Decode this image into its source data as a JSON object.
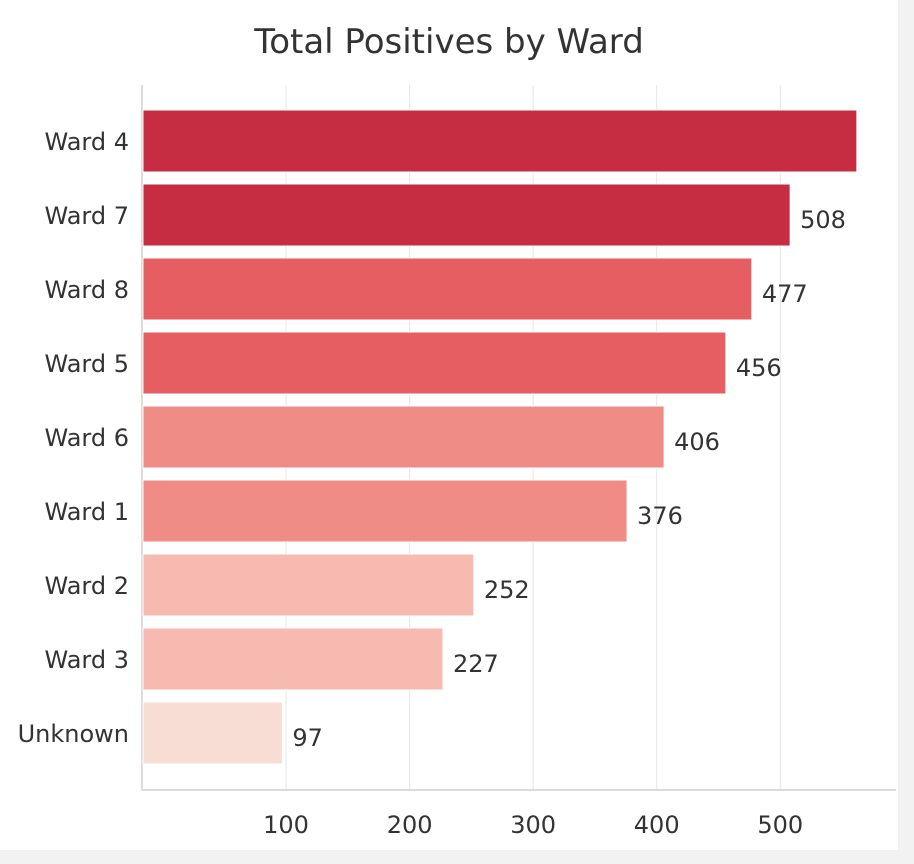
{
  "chart_data": {
    "type": "bar",
    "orientation": "horizontal",
    "title": "Total Positives by Ward",
    "xlabel": "",
    "ylabel": "",
    "categories": [
      "Ward 4",
      "Ward 7",
      "Ward 8",
      "Ward 5",
      "Ward 6",
      "Ward 1",
      "Ward 2",
      "Ward 3",
      "Unknown"
    ],
    "values": [
      562,
      508,
      477,
      456,
      406,
      376,
      252,
      227,
      97
    ],
    "value_labels": [
      "",
      "508",
      "477",
      "456",
      "406",
      "376",
      "252",
      "227",
      "97"
    ],
    "colors": [
      "#c62d42",
      "#c62d42",
      "#e55f62",
      "#e55f62",
      "#f08c86",
      "#f08c86",
      "#f7bab0",
      "#f7bab0",
      "#f8ddd4"
    ],
    "xlim": [
      0,
      610
    ],
    "x_ticks": [
      100,
      200,
      300,
      400,
      500
    ],
    "grid": true,
    "legend": "none"
  }
}
